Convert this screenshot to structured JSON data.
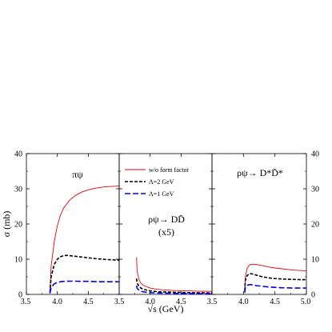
{
  "ylabel_left": "σ (mb)",
  "xlabel": "√s (GeV)",
  "y_ticks": [
    "0",
    "10",
    "20",
    "30",
    "40"
  ],
  "legend": [
    {
      "label": "w/o form factor",
      "color": "#e8000b",
      "dash": "solid"
    },
    {
      "label": "Λ=2 GeV",
      "color": "#000000",
      "dash": "dashed"
    },
    {
      "label": "Λ=1 GeV",
      "color": "#0000ee",
      "dash": "longdash"
    }
  ],
  "chart_data": [
    {
      "type": "line",
      "panel_label": "πψ",
      "xlim": [
        3.5,
        5.0
      ],
      "ylim": [
        0,
        40
      ],
      "x_ticks": [
        "3.5",
        "4.0",
        "4.5",
        "3.5"
      ],
      "series": [
        {
          "name": "w/o form factor",
          "x": [
            3.88,
            3.9,
            3.95,
            4.0,
            4.05,
            4.1,
            4.2,
            4.3,
            4.4,
            4.5,
            4.6,
            4.7,
            4.8,
            4.9,
            5.0
          ],
          "y": [
            0.5,
            8,
            15,
            19.5,
            22.5,
            24.5,
            26.8,
            28.2,
            29.1,
            29.7,
            30.1,
            30.4,
            30.6,
            30.7,
            30.8
          ]
        },
        {
          "name": "Λ=2 GeV",
          "x": [
            3.88,
            3.9,
            3.95,
            4.0,
            4.05,
            4.1,
            4.15,
            4.2,
            4.3,
            4.4,
            4.5,
            4.6,
            4.7,
            4.8,
            4.9,
            5.0
          ],
          "y": [
            0.5,
            5,
            8.5,
            10,
            10.7,
            11,
            11.1,
            11,
            10.8,
            10.6,
            10.4,
            10.2,
            10.05,
            9.9,
            9.8,
            9.7
          ]
        },
        {
          "name": "Λ=1 GeV",
          "x": [
            3.88,
            3.9,
            3.95,
            4.0,
            4.05,
            4.1,
            4.2,
            4.3,
            4.4,
            4.5,
            4.6,
            4.7,
            4.8,
            4.9,
            5.0
          ],
          "y": [
            0.3,
            2,
            3,
            3.4,
            3.6,
            3.7,
            3.75,
            3.75,
            3.7,
            3.7,
            3.65,
            3.6,
            3.6,
            3.6,
            3.6
          ]
        }
      ]
    },
    {
      "type": "line",
      "panel_label": "ρψ→ DD̄",
      "panel_sublabel": "(x5)",
      "xlim": [
        3.5,
        5.0
      ],
      "ylim": [
        0,
        40
      ],
      "x_ticks": [
        "4.0",
        "4.5",
        "3.5"
      ],
      "series": [
        {
          "name": "w/o form factor",
          "x": [
            3.78,
            3.79,
            3.82,
            3.85,
            3.9,
            4.0,
            4.1,
            4.2,
            4.4,
            4.6,
            4.8,
            5.0
          ],
          "y": [
            10.5,
            6.5,
            4.2,
            3.2,
            2.5,
            1.8,
            1.5,
            1.3,
            1.1,
            1.0,
            0.9,
            0.85
          ]
        },
        {
          "name": "Λ=2 GeV",
          "x": [
            3.78,
            3.79,
            3.82,
            3.85,
            3.9,
            4.0,
            4.1,
            4.2,
            4.4,
            4.6,
            4.8,
            5.0
          ],
          "y": [
            4.5,
            3.2,
            2.3,
            1.8,
            1.4,
            1.0,
            0.8,
            0.7,
            0.6,
            0.5,
            0.45,
            0.4
          ]
        },
        {
          "name": "Λ=1 GeV",
          "x": [
            3.78,
            3.79,
            3.82,
            3.85,
            3.9,
            4.0,
            4.1,
            4.2,
            4.4,
            4.6,
            4.8,
            5.0
          ],
          "y": [
            2.5,
            1.7,
            1.2,
            0.9,
            0.7,
            0.5,
            0.4,
            0.35,
            0.3,
            0.25,
            0.2,
            0.2
          ]
        }
      ]
    },
    {
      "type": "line",
      "panel_label": "ρψ→ D*D̄*",
      "xlim": [
        3.5,
        5.0
      ],
      "ylim": [
        0,
        40
      ],
      "x_ticks": [
        "4.0",
        "4.5",
        "5.0"
      ],
      "series": [
        {
          "name": "w/o form factor",
          "x": [
            4.02,
            4.03,
            4.06,
            4.1,
            4.15,
            4.2,
            4.3,
            4.4,
            4.5,
            4.6,
            4.7,
            4.8,
            4.9,
            5.0
          ],
          "y": [
            1,
            5,
            7.5,
            8.4,
            8.6,
            8.5,
            8.2,
            7.8,
            7.5,
            7.3,
            7.1,
            6.9,
            6.8,
            6.7
          ]
        },
        {
          "name": "Λ=2 GeV",
          "x": [
            4.02,
            4.03,
            4.06,
            4.1,
            4.15,
            4.2,
            4.3,
            4.4,
            4.5,
            4.6,
            4.7,
            4.8,
            4.9,
            5.0
          ],
          "y": [
            1,
            4,
            5.4,
            5.9,
            5.8,
            5.5,
            5.0,
            4.7,
            4.5,
            4.4,
            4.3,
            4.25,
            4.2,
            4.2
          ]
        },
        {
          "name": "Λ=1 GeV",
          "x": [
            4.02,
            4.03,
            4.06,
            4.1,
            4.15,
            4.2,
            4.3,
            4.4,
            4.5,
            4.6,
            4.7,
            4.8,
            4.9,
            5.0
          ],
          "y": [
            0.5,
            2,
            2.6,
            2.8,
            2.7,
            2.5,
            2.3,
            2.1,
            2.0,
            1.9,
            1.85,
            1.8,
            1.8,
            1.8
          ]
        }
      ]
    }
  ]
}
